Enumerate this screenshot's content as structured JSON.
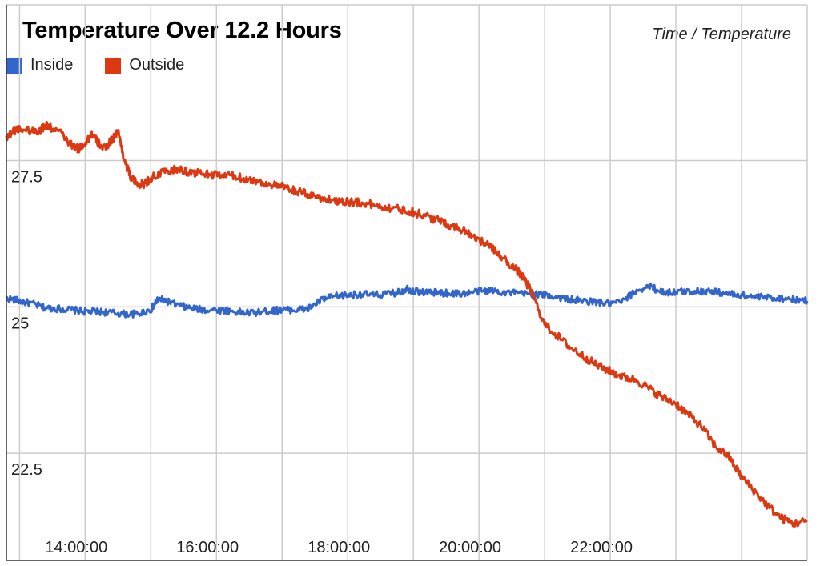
{
  "chart_data": {
    "type": "line",
    "title": "Temperature Over 12.2 Hours",
    "subtitle": "Time / Temperature",
    "xlabel": "",
    "ylabel": "",
    "x_range_hours": [
      12.8,
      25.0
    ],
    "ylim": [
      20.67,
      30.16
    ],
    "y_ticks": [
      22.5,
      25,
      27.5
    ],
    "y_tick_labels": [
      "22.5",
      "25",
      "27.5"
    ],
    "x_ticks": [
      14,
      16,
      18,
      20,
      22
    ],
    "x_tick_labels": [
      "14:00:00",
      "16:00:00",
      "18:00:00",
      "20:00:00",
      "22:00:00"
    ],
    "grid": true,
    "legend_position": "top-left",
    "series": [
      {
        "name": "Inside",
        "color": "#3366cc",
        "x": [
          12.8,
          13.0,
          13.2,
          13.4,
          13.6,
          13.8,
          14.0,
          14.2,
          14.4,
          14.6,
          14.8,
          15.0,
          15.1,
          15.2,
          15.4,
          15.6,
          15.8,
          16.0,
          16.2,
          16.4,
          16.6,
          16.8,
          16.9,
          17.0,
          17.2,
          17.4,
          17.6,
          17.8,
          18.0,
          18.2,
          18.4,
          18.6,
          18.8,
          18.9,
          19.0,
          19.2,
          19.4,
          19.6,
          19.8,
          20.0,
          20.2,
          20.4,
          20.6,
          20.8,
          21.0,
          21.2,
          21.4,
          21.6,
          21.8,
          22.0,
          22.2,
          22.4,
          22.6,
          22.8,
          23.0,
          23.2,
          23.4,
          23.6,
          23.8,
          24.0,
          24.2,
          24.4,
          24.6,
          24.8,
          25.0
        ],
        "y": [
          25.15,
          25.1,
          25.05,
          24.98,
          24.97,
          24.95,
          24.92,
          24.92,
          24.9,
          24.88,
          24.88,
          24.95,
          25.12,
          25.12,
          25.03,
          24.98,
          24.95,
          24.95,
          24.93,
          24.9,
          24.9,
          24.93,
          24.94,
          24.95,
          24.95,
          24.97,
          25.12,
          25.18,
          25.2,
          25.22,
          25.2,
          25.22,
          25.25,
          25.32,
          25.27,
          25.25,
          25.24,
          25.23,
          25.23,
          25.27,
          25.28,
          25.25,
          25.23,
          25.22,
          25.2,
          25.17,
          25.12,
          25.1,
          25.08,
          25.05,
          25.1,
          25.28,
          25.35,
          25.25,
          25.25,
          25.27,
          25.27,
          25.26,
          25.22,
          25.2,
          25.17,
          25.16,
          25.15,
          25.13,
          25.1
        ]
      },
      {
        "name": "Outside",
        "color": "#dc3912",
        "x": [
          12.8,
          12.9,
          13.0,
          13.2,
          13.3,
          13.4,
          13.6,
          13.8,
          13.9,
          14.0,
          14.1,
          14.2,
          14.3,
          14.4,
          14.5,
          14.6,
          14.7,
          14.8,
          14.9,
          15.0,
          15.2,
          15.4,
          15.6,
          15.8,
          16.0,
          16.2,
          16.4,
          16.6,
          16.8,
          17.0,
          17.2,
          17.4,
          17.6,
          17.8,
          18.0,
          18.2,
          18.4,
          18.6,
          18.8,
          19.0,
          19.2,
          19.4,
          19.6,
          19.8,
          20.0,
          20.2,
          20.4,
          20.6,
          20.7,
          20.8,
          21.0,
          21.2,
          21.4,
          21.6,
          21.8,
          22.0,
          22.2,
          22.4,
          22.6,
          22.8,
          23.0,
          23.2,
          23.4,
          23.6,
          23.8,
          24.0,
          24.2,
          24.4,
          24.6,
          24.8,
          25.0
        ],
        "y": [
          27.9,
          28.0,
          28.05,
          28.0,
          28.0,
          28.1,
          28.0,
          27.75,
          27.7,
          27.8,
          27.95,
          27.8,
          27.7,
          27.85,
          28.0,
          27.5,
          27.2,
          27.1,
          27.1,
          27.2,
          27.3,
          27.35,
          27.3,
          27.28,
          27.25,
          27.25,
          27.2,
          27.15,
          27.1,
          27.05,
          26.98,
          26.92,
          26.86,
          26.82,
          26.8,
          26.78,
          26.74,
          26.7,
          26.67,
          26.62,
          26.55,
          26.47,
          26.38,
          26.3,
          26.15,
          26.0,
          25.8,
          25.6,
          25.45,
          25.25,
          24.7,
          24.5,
          24.3,
          24.15,
          24.0,
          23.9,
          23.8,
          23.75,
          23.6,
          23.45,
          23.35,
          23.15,
          22.95,
          22.62,
          22.45,
          22.1,
          21.85,
          21.6,
          21.4,
          21.3,
          21.35
        ]
      }
    ]
  }
}
